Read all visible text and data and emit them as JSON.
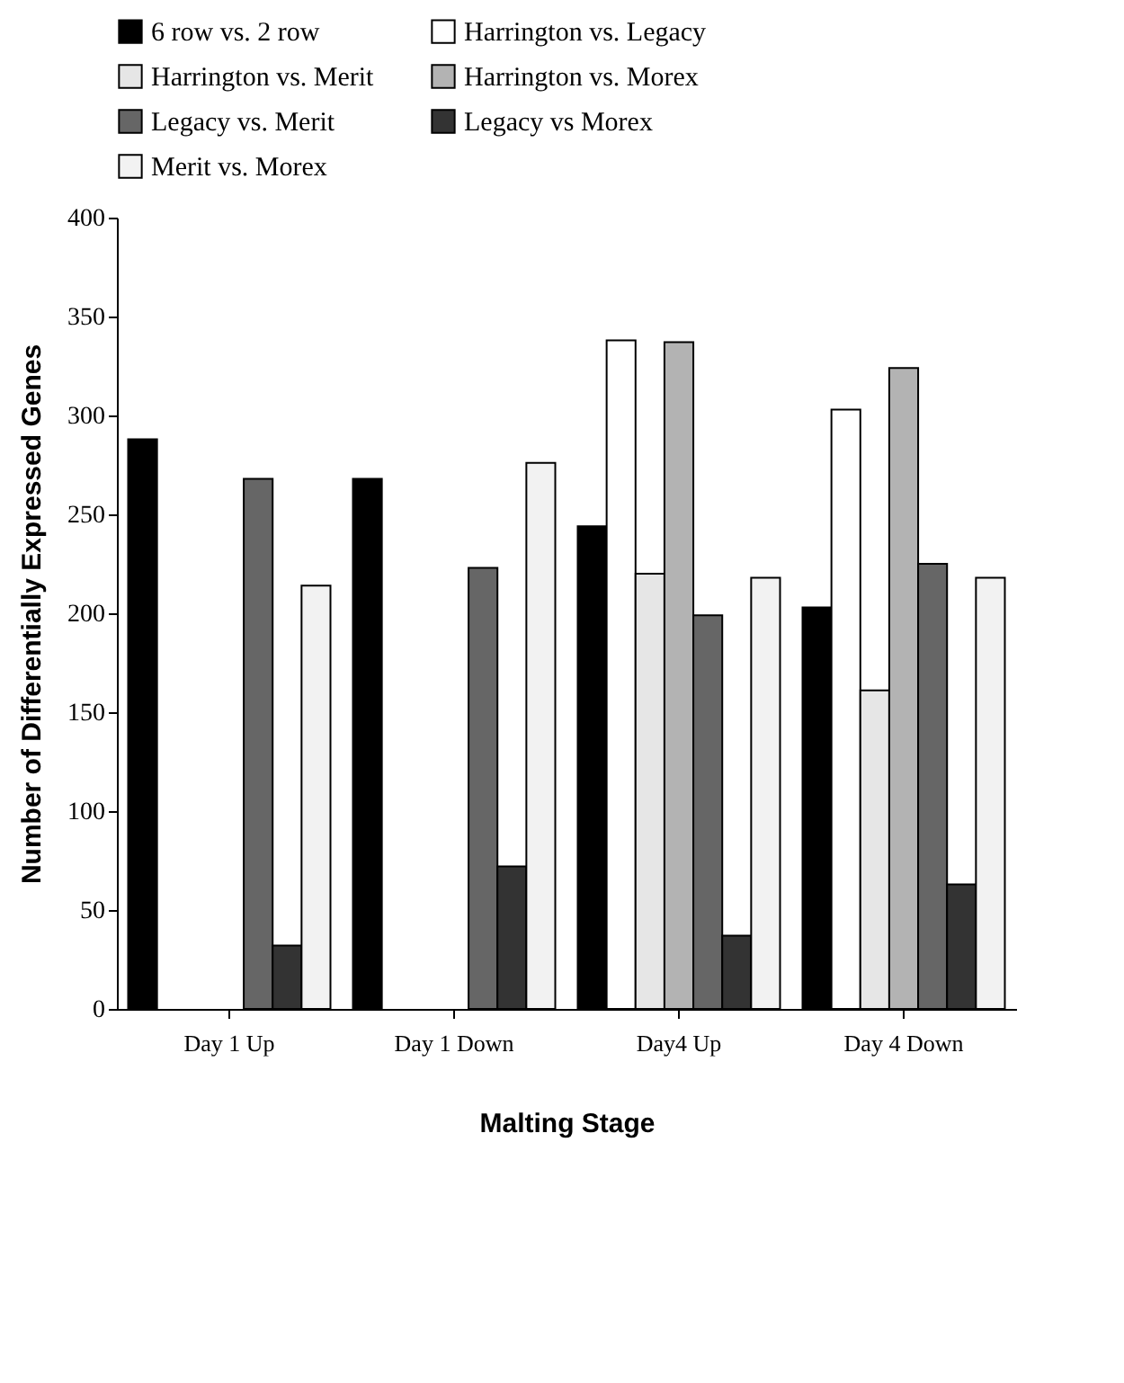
{
  "chart_data": {
    "type": "bar",
    "xlabel": "Malting Stage",
    "ylabel": "Number of Differentially Expressed Genes",
    "categories": [
      "Day 1 Up",
      "Day 1 Down",
      "Day4 Up",
      "Day 4 Down"
    ],
    "series": [
      {
        "name": "6 row vs. 2 row",
        "color": "#000000",
        "values": [
          288,
          268,
          244,
          203
        ]
      },
      {
        "name": "Harrington vs. Legacy",
        "color": "#ffffff",
        "values": [
          null,
          null,
          338,
          303
        ]
      },
      {
        "name": "Harrington vs. Merit",
        "color": "#e6e6e6",
        "values": [
          null,
          null,
          220,
          161
        ]
      },
      {
        "name": "Harrington vs. Morex",
        "color": "#b3b3b3",
        "values": [
          null,
          null,
          337,
          324
        ]
      },
      {
        "name": "Legacy vs. Merit",
        "color": "#666666",
        "values": [
          268,
          223,
          199,
          225
        ]
      },
      {
        "name": "Legacy vs Morex",
        "color": "#333333",
        "values": [
          32,
          72,
          37,
          63
        ]
      },
      {
        "name": "Merit vs. Morex",
        "color": "#f2f2f2",
        "values": [
          214,
          276,
          218,
          218
        ]
      }
    ],
    "ylim": [
      0,
      400
    ],
    "yticks": [
      0,
      50,
      100,
      150,
      200,
      250,
      300,
      350,
      400
    ],
    "grid": false,
    "legend": "top"
  }
}
